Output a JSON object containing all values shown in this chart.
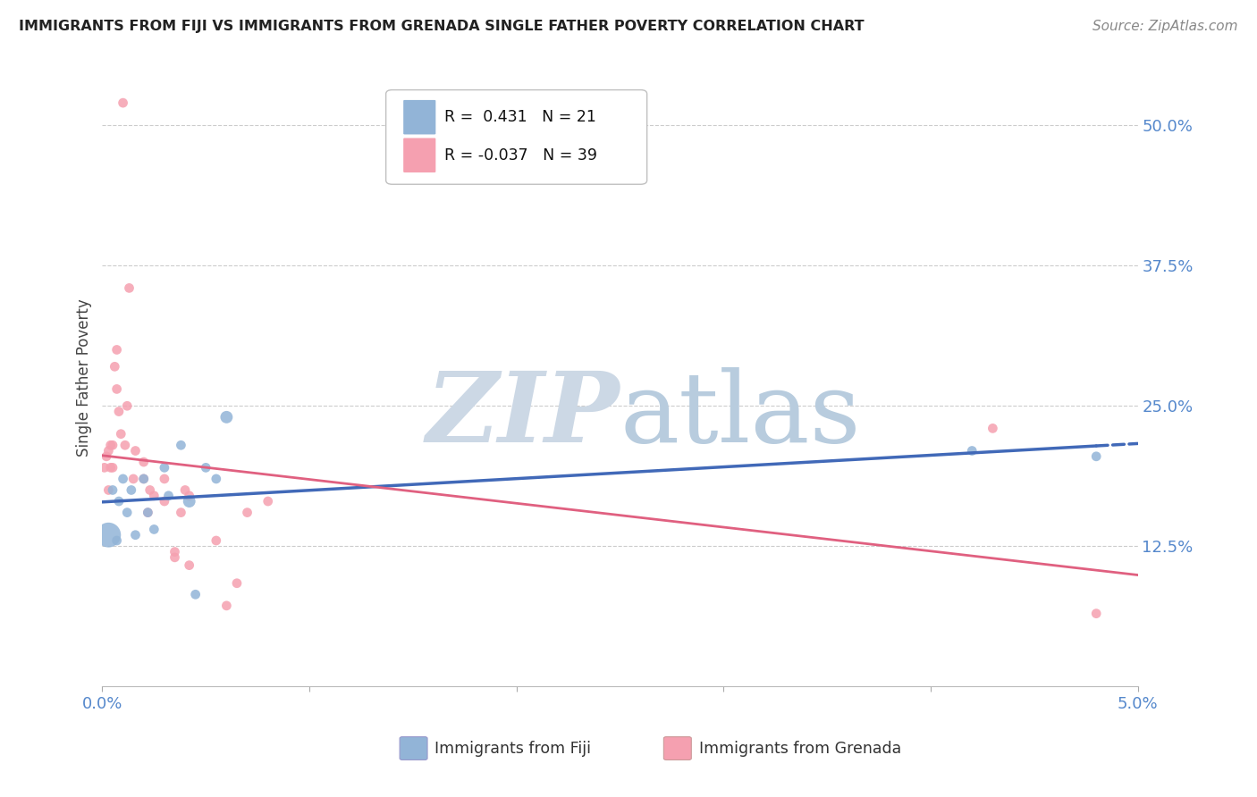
{
  "title": "IMMIGRANTS FROM FIJI VS IMMIGRANTS FROM GRENADA SINGLE FATHER POVERTY CORRELATION CHART",
  "source": "Source: ZipAtlas.com",
  "xlabel_blue": "Immigrants from Fiji",
  "xlabel_pink": "Immigrants from Grenada",
  "ylabel": "Single Father Poverty",
  "xlim": [
    0.0,
    0.05
  ],
  "ylim": [
    0.0,
    0.55
  ],
  "xtick_vals": [
    0.0,
    0.01,
    0.02,
    0.03,
    0.04,
    0.05
  ],
  "xtick_labels": [
    "0.0%",
    "",
    "",
    "",
    "",
    "5.0%"
  ],
  "ytick_values": [
    0.125,
    0.25,
    0.375,
    0.5
  ],
  "ytick_labels": [
    "12.5%",
    "25.0%",
    "37.5%",
    "50.0%"
  ],
  "legend_blue_R": "0.431",
  "legend_blue_N": "21",
  "legend_pink_R": "-0.037",
  "legend_pink_N": "39",
  "blue_color": "#92b4d7",
  "pink_color": "#f5a0b0",
  "blue_line_color": "#4169b8",
  "pink_line_color": "#e06080",
  "grid_color": "#cccccc",
  "fiji_x": [
    0.0003,
    0.0005,
    0.0007,
    0.0008,
    0.001,
    0.0012,
    0.0014,
    0.0016,
    0.002,
    0.0022,
    0.0025,
    0.003,
    0.0032,
    0.0038,
    0.0042,
    0.0045,
    0.005,
    0.0055,
    0.006,
    0.042,
    0.048
  ],
  "fiji_y": [
    0.135,
    0.175,
    0.13,
    0.165,
    0.185,
    0.155,
    0.175,
    0.135,
    0.185,
    0.155,
    0.14,
    0.195,
    0.17,
    0.215,
    0.165,
    0.082,
    0.195,
    0.185,
    0.24,
    0.21,
    0.205
  ],
  "fiji_size": [
    400,
    60,
    60,
    60,
    60,
    60,
    60,
    60,
    60,
    60,
    60,
    60,
    60,
    60,
    100,
    60,
    60,
    60,
    100,
    60,
    60
  ],
  "grenada_x": [
    0.0001,
    0.0002,
    0.0003,
    0.0003,
    0.0004,
    0.0004,
    0.0005,
    0.0005,
    0.0006,
    0.0007,
    0.0007,
    0.0008,
    0.0009,
    0.001,
    0.0011,
    0.0012,
    0.0013,
    0.0015,
    0.0016,
    0.002,
    0.002,
    0.0022,
    0.0023,
    0.0025,
    0.003,
    0.003,
    0.0035,
    0.0035,
    0.0038,
    0.004,
    0.0042,
    0.0042,
    0.0055,
    0.006,
    0.0065,
    0.007,
    0.008,
    0.043,
    0.048
  ],
  "grenada_y": [
    0.195,
    0.205,
    0.175,
    0.21,
    0.195,
    0.215,
    0.195,
    0.215,
    0.285,
    0.3,
    0.265,
    0.245,
    0.225,
    0.52,
    0.215,
    0.25,
    0.355,
    0.185,
    0.21,
    0.2,
    0.185,
    0.155,
    0.175,
    0.17,
    0.185,
    0.165,
    0.115,
    0.12,
    0.155,
    0.175,
    0.17,
    0.108,
    0.13,
    0.072,
    0.092,
    0.155,
    0.165,
    0.23,
    0.065
  ],
  "grenada_size": [
    60,
    60,
    60,
    60,
    60,
    60,
    60,
    60,
    60,
    60,
    60,
    60,
    60,
    60,
    60,
    60,
    60,
    60,
    60,
    60,
    60,
    60,
    60,
    60,
    60,
    60,
    60,
    60,
    60,
    60,
    60,
    60,
    60,
    60,
    60,
    60,
    60,
    60,
    60
  ],
  "watermark_color": "#ccd8e5",
  "tick_color": "#5588cc"
}
